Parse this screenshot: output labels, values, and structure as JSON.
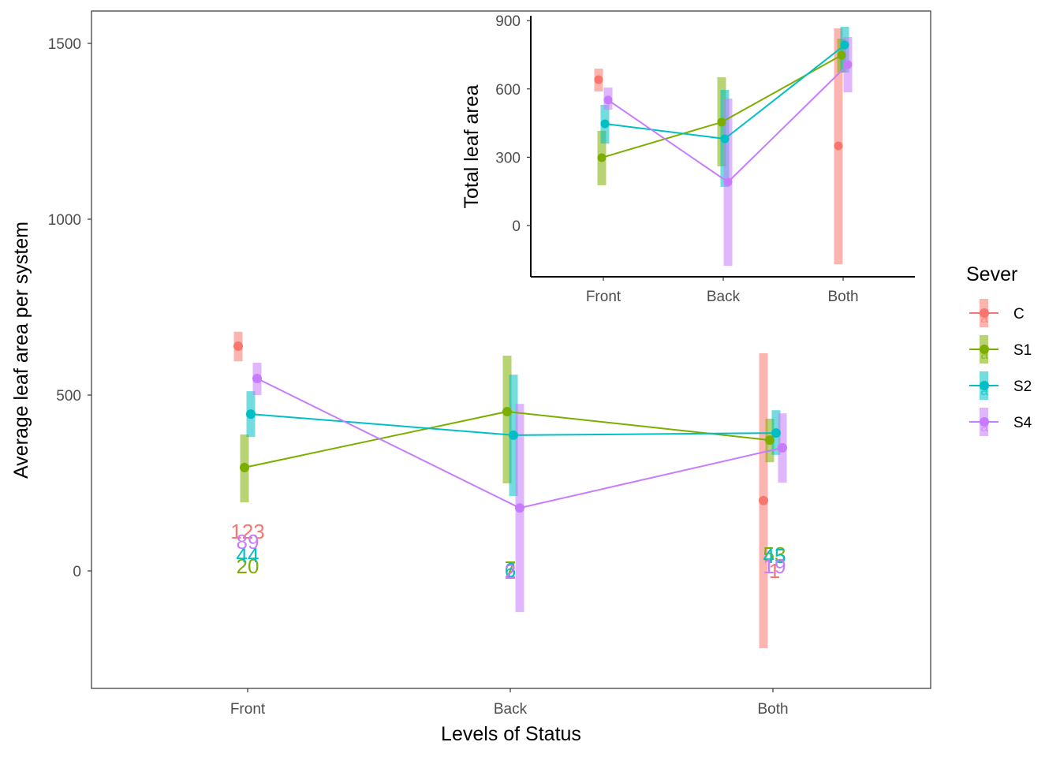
{
  "chart_data": [
    {
      "id": "main",
      "type": "line",
      "title": "",
      "xlabel": "Levels of Status",
      "ylabel": "Average leaf area per system",
      "categories": [
        "Front",
        "Back",
        "Both"
      ],
      "yticks": [
        0,
        500,
        1000,
        1500
      ],
      "ytick_labels": [
        "0",
        "500",
        "1000",
        "1500"
      ],
      "ylim": [
        -335,
        1590
      ],
      "grid": false,
      "series": [
        {
          "name": "C",
          "values": [
            639,
            null,
            200
          ],
          "error_bars": [
            [
              596,
              680
            ],
            null,
            [
              -220,
              619
            ]
          ],
          "count_labels": [
            "123",
            "2",
            "1"
          ]
        },
        {
          "name": "S1",
          "values": [
            294,
            453,
            372
          ],
          "error_bars": [
            [
              195,
              388
            ],
            [
              249,
              612
            ],
            [
              309,
              433
            ]
          ],
          "count_labels": [
            "20",
            "7",
            "53"
          ]
        },
        {
          "name": "S2",
          "values": [
            446,
            386,
            392
          ],
          "error_bars": [
            [
              381,
              511
            ],
            [
              213,
              558
            ],
            [
              330,
              457
            ]
          ],
          "count_labels": [
            "44",
            "6",
            "45"
          ]
        },
        {
          "name": "S4",
          "values": [
            547,
            179,
            350
          ],
          "error_bars": [
            [
              500,
              592
            ],
            [
              -117,
              475
            ],
            [
              251,
              448
            ]
          ],
          "count_labels": [
            "89",
            "2",
            "19"
          ]
        }
      ]
    },
    {
      "id": "inset",
      "type": "line",
      "title": "",
      "xlabel": "",
      "ylabel": "Total leaf area",
      "categories": [
        "Front",
        "Back",
        "Both"
      ],
      "yticks": [
        0,
        300,
        600,
        900
      ],
      "ytick_labels": [
        "0",
        "300",
        "600",
        "900"
      ],
      "ylim": [
        -225,
        920
      ],
      "grid": false,
      "series": [
        {
          "name": "C",
          "values": [
            641,
            null,
            350
          ],
          "error_bars": [
            [
              589,
              689
            ],
            null,
            [
              -170,
              866
            ]
          ]
        },
        {
          "name": "S1",
          "values": [
            298,
            454,
            748
          ],
          "error_bars": [
            [
              177,
              416
            ],
            [
              260,
              651
            ],
            [
              672,
              821
            ]
          ]
        },
        {
          "name": "S2",
          "values": [
            447,
            381,
            793
          ],
          "error_bars": [
            [
              360,
              530
            ],
            [
              170,
              596
            ],
            [
              672,
              873
            ]
          ]
        },
        {
          "name": "S4",
          "values": [
            551,
            191,
            707
          ],
          "error_bars": [
            [
              509,
              606
            ],
            [
              -177,
              558
            ],
            [
              585,
              828
            ]
          ]
        }
      ]
    }
  ],
  "legend": {
    "title": "Sever",
    "position": "right",
    "items": [
      {
        "label": "C",
        "color": "#F8766D",
        "key_glyph": "a"
      },
      {
        "label": "S1",
        "color": "#7CAE00",
        "key_glyph": "a"
      },
      {
        "label": "S2",
        "color": "#00BFC4",
        "key_glyph": "a"
      },
      {
        "label": "S4",
        "color": "#C77CFF",
        "key_glyph": "a"
      }
    ]
  },
  "colors": {
    "C": "#F8766D",
    "S1": "#7CAE00",
    "S2": "#00BFC4",
    "S4": "#C77CFF",
    "axis": "#333333",
    "tick_text": "#4d4d4d"
  }
}
